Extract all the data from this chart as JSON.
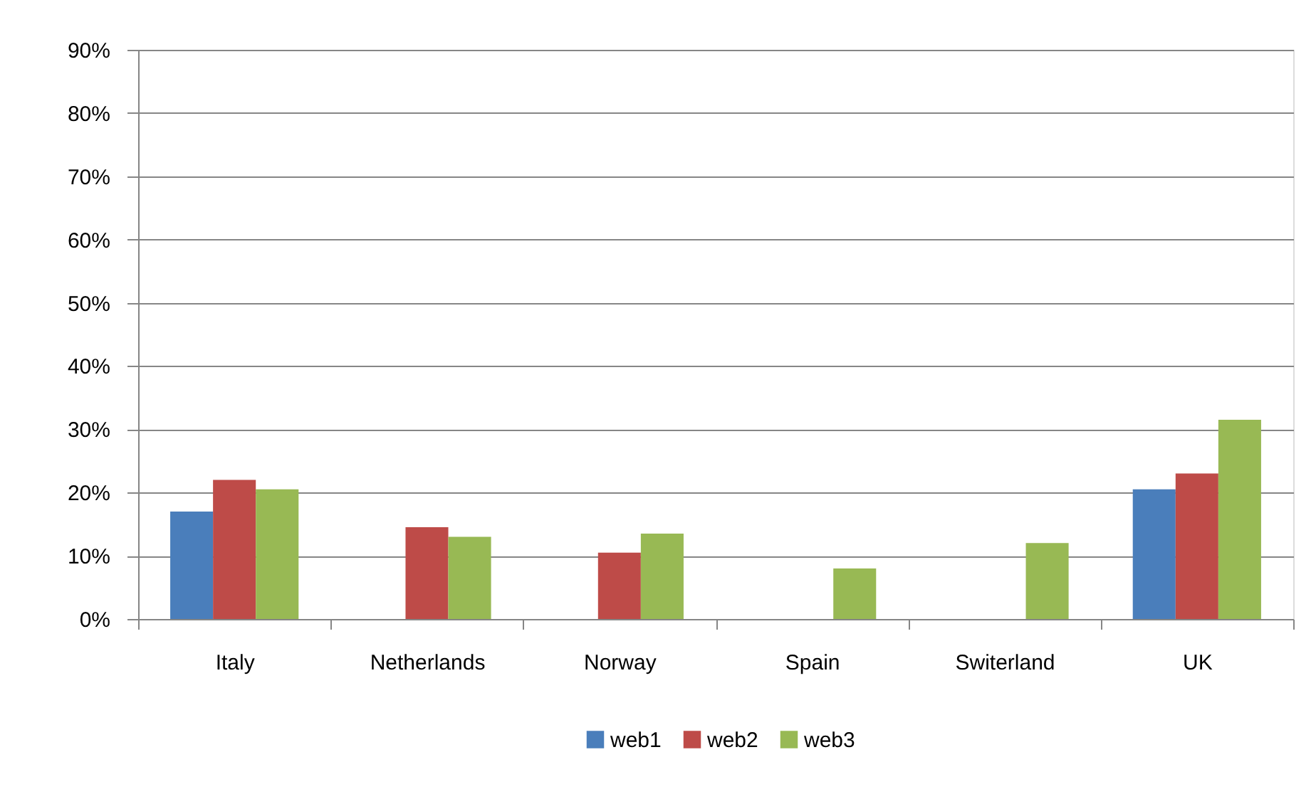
{
  "chart_data": {
    "type": "bar",
    "categories": [
      "Italy",
      "Netherlands",
      "Norway",
      "Spain",
      "Switerland",
      "UK"
    ],
    "series": [
      {
        "name": "web1",
        "color": "#4a7ebb",
        "values": [
          17,
          null,
          null,
          null,
          null,
          20.5
        ]
      },
      {
        "name": "web2",
        "color": "#be4b48",
        "values": [
          22,
          14.5,
          10.5,
          null,
          null,
          23
        ]
      },
      {
        "name": "web3",
        "color": "#98b954",
        "values": [
          20.5,
          13,
          13.5,
          8,
          12,
          31.5
        ]
      }
    ],
    "ylim": [
      0,
      90
    ],
    "yticks": [
      {
        "value": 0,
        "label": "0%"
      },
      {
        "value": 10,
        "label": "10%"
      },
      {
        "value": 20,
        "label": "20%"
      },
      {
        "value": 30,
        "label": "30%"
      },
      {
        "value": 40,
        "label": "40%"
      },
      {
        "value": 50,
        "label": "50%"
      },
      {
        "value": 60,
        "label": "60%"
      },
      {
        "value": 70,
        "label": "70%"
      },
      {
        "value": 80,
        "label": "80%"
      },
      {
        "value": 90,
        "label": "90%"
      }
    ],
    "grid": "y",
    "legend": "bottom"
  }
}
